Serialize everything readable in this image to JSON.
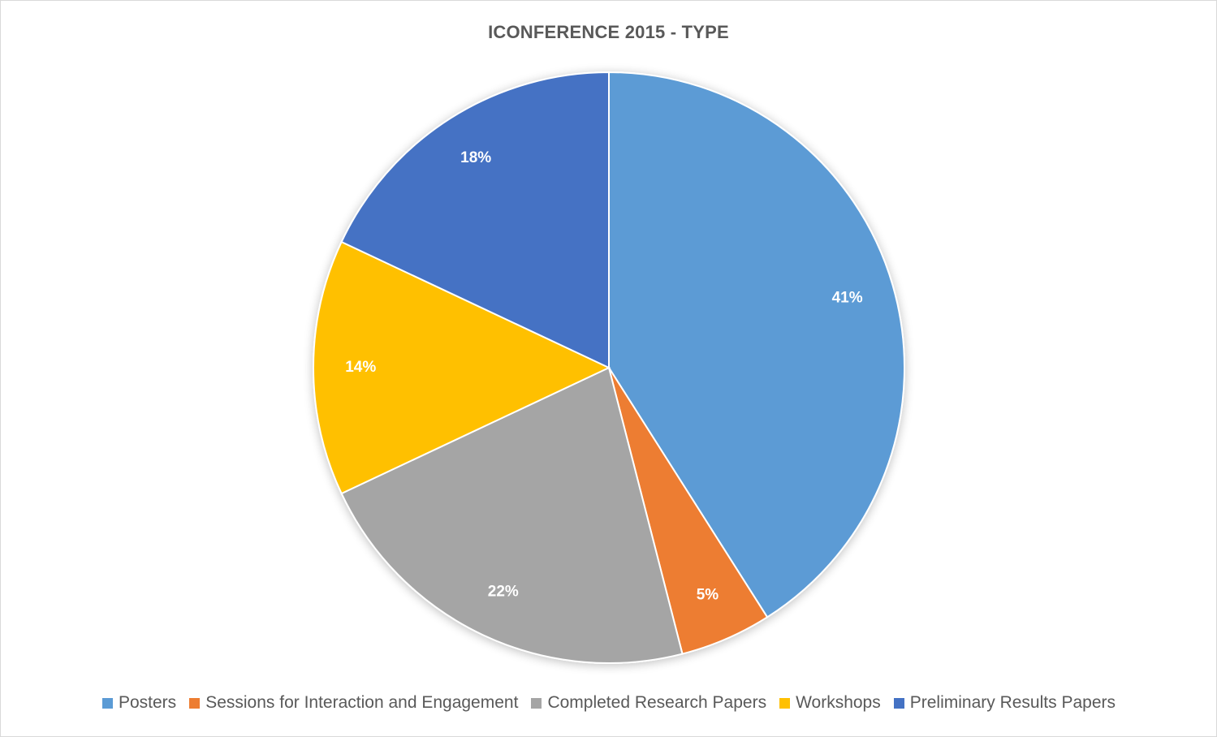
{
  "chart_data": {
    "type": "pie",
    "title": "ICONFERENCE 2015 - TYPE",
    "categories": [
      "Posters",
      "Sessions for Interaction and Engagement",
      "Completed Research Papers",
      "Workshops",
      "Preliminary Results Papers"
    ],
    "values": [
      41,
      5,
      22,
      14,
      18
    ],
    "labels": [
      "41%",
      "5%",
      "22%",
      "14%",
      "18%"
    ],
    "colors": [
      "#5B9BD5",
      "#ED7D31",
      "#A5A5A5",
      "#FFC000",
      "#4472C4"
    ],
    "legend_position": "bottom"
  }
}
